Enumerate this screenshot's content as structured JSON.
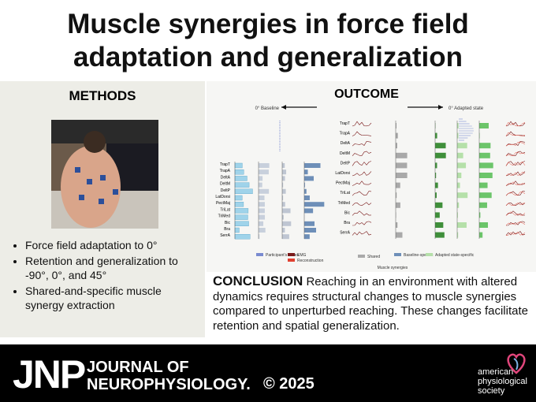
{
  "header": {
    "title_lines": [
      "Muscle synergies in force field",
      "adaptation and generalization"
    ]
  },
  "methods": {
    "heading": "METHODS",
    "bullets": [
      "Force field adaptation to 0°",
      "Retention and generalization to -90°, 0°, and 45°",
      "Shared-and-specific muscle synergy extraction"
    ]
  },
  "outcome": {
    "heading": "OUTCOME",
    "baseline_label": "0° Baseline",
    "adapted_label": "0° Adapted state",
    "muscles": [
      "TrapT",
      "TrapA",
      "DeltA",
      "DeltM",
      "DeltP",
      "LatDorsi",
      "PectMaj",
      "TriLat",
      "TriMed",
      "Bic",
      "Bra",
      "SerrA"
    ],
    "legend": {
      "forces": "Participant's forces",
      "emg": "EMG",
      "reconstruction": "Reconstruction",
      "shared": "Shared",
      "baseline_specific": "Baseline-specific",
      "adapted_specific": "Adapted state-specific"
    },
    "synergies_label": "Muscle synergies"
  },
  "conclusion": {
    "heading": "CONCLUSION",
    "text": "Reaching in an environment with altered dynamics requires structural changes to muscle synergies compared to unperturbed reaching. These changes facilitate retention and spatial generalization."
  },
  "footer": {
    "journal_abbr": "JNP",
    "journal_line_1": "JOURNAL OF",
    "journal_line_2": "NEUROPHYSIOLOGY.",
    "copyright": "© 2025",
    "society": [
      "american",
      "physiological",
      "society"
    ]
  }
}
